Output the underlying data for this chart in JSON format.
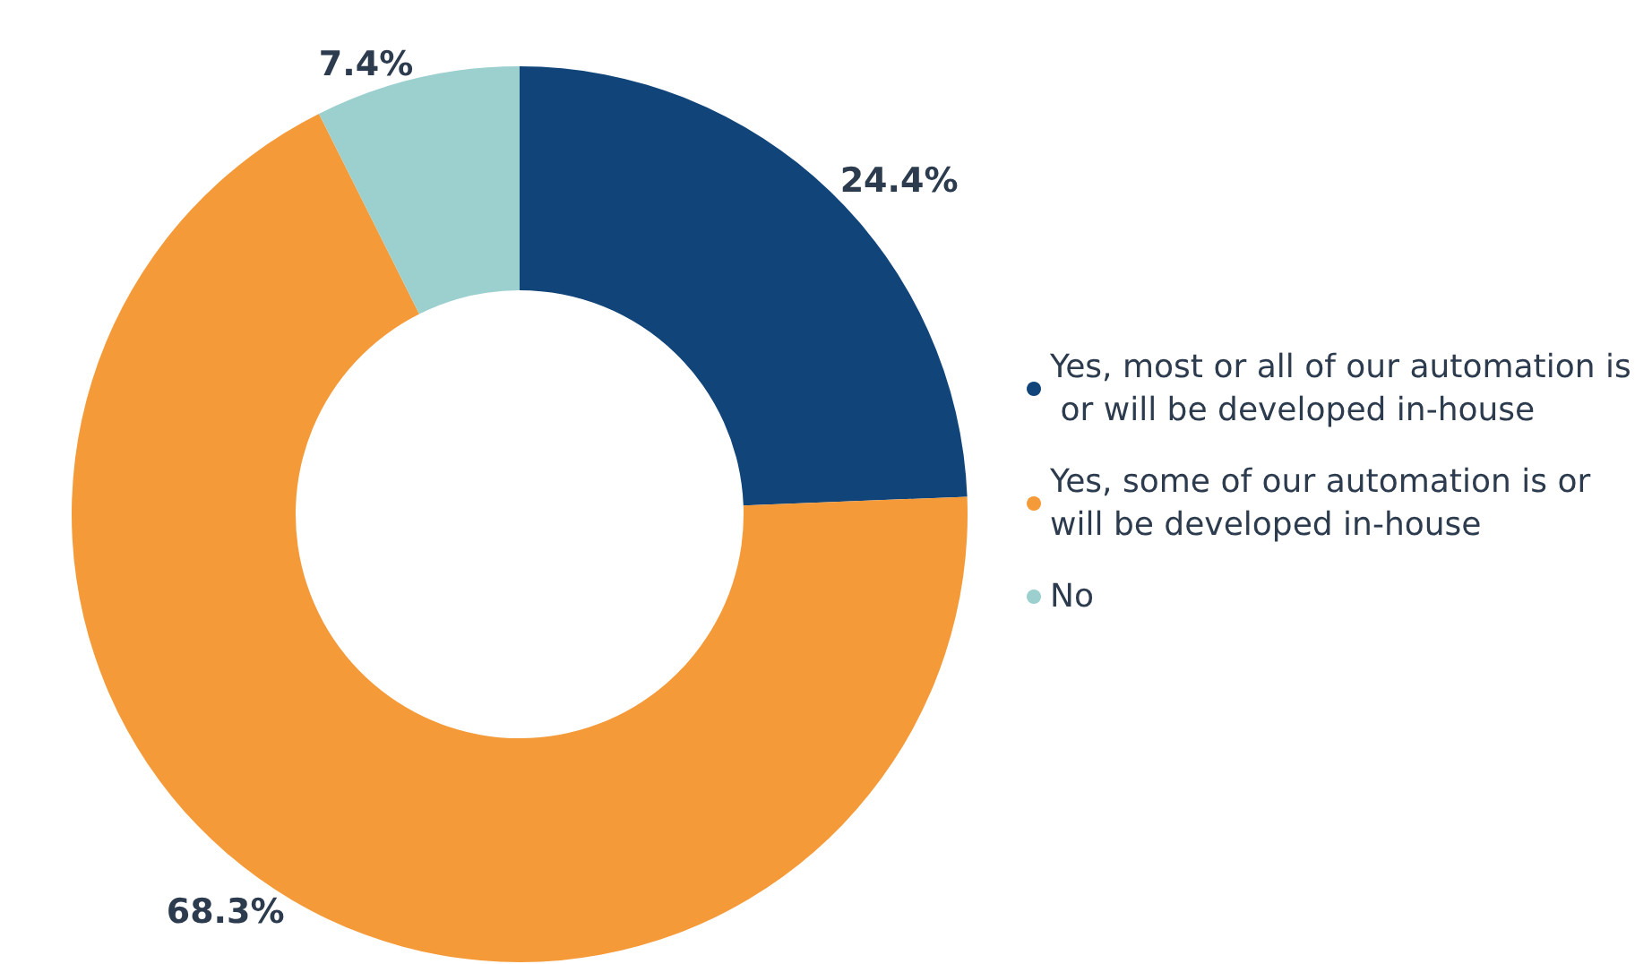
{
  "chart_data": {
    "type": "donut",
    "categories": [
      "Yes, most or all of our automation is or will be developed in-house",
      "Yes, some of our automation is or will be developed in-house",
      "No"
    ],
    "values": [
      24.4,
      68.3,
      7.4
    ],
    "colors": [
      "#11457a",
      "#f59a38",
      "#9bd0cf"
    ],
    "value_labels": [
      "24.4%",
      "68.3%",
      "7.4%"
    ],
    "legend": "right"
  }
}
